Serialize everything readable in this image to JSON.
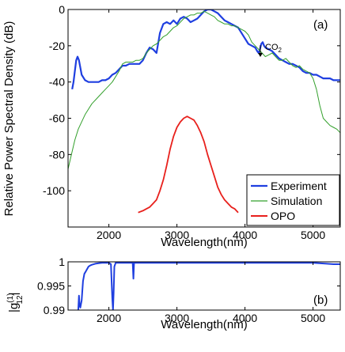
{
  "chart_data": [
    {
      "panel": "(a)",
      "type": "line",
      "xlabel": "Wavelength(nm)",
      "ylabel": "Relative Power Spectral Density (dB)",
      "xlim": [
        1400,
        5400
      ],
      "ylim": [
        -120,
        0
      ],
      "xticks": [
        2000,
        3000,
        4000,
        5000
      ],
      "yticks": [
        0,
        -20,
        -40,
        -60,
        -80,
        -100
      ],
      "legend_position": "bottom-right",
      "annotation": {
        "text": "CO",
        "subscript": "2",
        "x": 4230,
        "y": -18
      },
      "series": [
        {
          "name": "Experiment",
          "color": "#1f3fe0",
          "width": 2.2,
          "x": [
            1460,
            1480,
            1500,
            1520,
            1540,
            1560,
            1580,
            1600,
            1650,
            1700,
            1750,
            1800,
            1850,
            1900,
            1950,
            2000,
            2050,
            2100,
            2150,
            2200,
            2250,
            2300,
            2350,
            2400,
            2450,
            2500,
            2550,
            2600,
            2650,
            2700,
            2750,
            2800,
            2850,
            2900,
            2950,
            3000,
            3050,
            3100,
            3150,
            3200,
            3250,
            3300,
            3350,
            3400,
            3450,
            3500,
            3550,
            3600,
            3650,
            3700,
            3750,
            3800,
            3850,
            3900,
            3950,
            4000,
            4050,
            4100,
            4150,
            4180,
            4200,
            4220,
            4240,
            4260,
            4280,
            4300,
            4350,
            4400,
            4450,
            4500,
            4550,
            4600,
            4650,
            4700,
            4750,
            4800,
            4850,
            4900,
            4950,
            5000,
            5050,
            5100,
            5150,
            5200,
            5250,
            5300,
            5350,
            5400
          ],
          "y": [
            -44,
            -40,
            -34,
            -28,
            -26,
            -28,
            -32,
            -36,
            -39,
            -40,
            -40,
            -40,
            -40,
            -39,
            -39,
            -38,
            -36,
            -35,
            -33,
            -31,
            -31,
            -30,
            -30,
            -30,
            -30,
            -28,
            -24,
            -21,
            -22,
            -24,
            -13,
            -8,
            -7,
            -8,
            -6,
            -8,
            -5,
            -4,
            -5,
            -7,
            -6,
            -5,
            -3,
            -1,
            0,
            0,
            -1,
            -2,
            -4,
            -6,
            -7,
            -8,
            -9,
            -10,
            -13,
            -16,
            -19,
            -20,
            -21,
            -23,
            -24,
            -22,
            -19,
            -18,
            -20,
            -21,
            -22,
            -23,
            -25,
            -27,
            -28,
            -29,
            -30,
            -30,
            -31,
            -32,
            -34,
            -35,
            -35,
            -36,
            -36,
            -37,
            -38,
            -38,
            -38,
            -39,
            -39,
            -39
          ]
        },
        {
          "name": "Simulation",
          "color": "#33a02c",
          "width": 1,
          "x": [
            1400,
            1450,
            1500,
            1550,
            1600,
            1650,
            1700,
            1750,
            1800,
            1850,
            1900,
            1950,
            2000,
            2050,
            2100,
            2150,
            2200,
            2250,
            2300,
            2350,
            2400,
            2450,
            2500,
            2550,
            2600,
            2650,
            2700,
            2750,
            2800,
            2850,
            2900,
            2950,
            3000,
            3050,
            3100,
            3150,
            3200,
            3250,
            3300,
            3350,
            3400,
            3450,
            3500,
            3550,
            3600,
            3650,
            3700,
            3750,
            3800,
            3850,
            3900,
            3950,
            4000,
            4050,
            4100,
            4150,
            4200,
            4250,
            4300,
            4350,
            4400,
            4450,
            4500,
            4550,
            4600,
            4650,
            4700,
            4750,
            4800,
            4850,
            4900,
            4950,
            5000,
            5050,
            5100,
            5150,
            5200,
            5250,
            5300,
            5350,
            5400
          ],
          "y": [
            -88,
            -80,
            -72,
            -66,
            -62,
            -58,
            -55,
            -52,
            -50,
            -48,
            -46,
            -44,
            -42,
            -40,
            -37,
            -34,
            -30,
            -29,
            -29,
            -29,
            -28,
            -28,
            -27,
            -24,
            -22,
            -20,
            -19,
            -17,
            -15,
            -14,
            -12,
            -10,
            -9,
            -7,
            -5,
            -4,
            -3,
            -3,
            -2,
            -2,
            -1,
            -2,
            -3,
            -4,
            -6,
            -7,
            -8,
            -8,
            -9,
            -9,
            -10,
            -11,
            -12,
            -14,
            -18,
            -20,
            -22,
            -24,
            -26,
            -25,
            -24,
            -26,
            -28,
            -28,
            -27,
            -29,
            -31,
            -32,
            -31,
            -33,
            -34,
            -35,
            -38,
            -44,
            -53,
            -60,
            -62,
            -64,
            -65,
            -66,
            -68
          ]
        },
        {
          "name": "OPO",
          "color": "#e8201c",
          "width": 1.8,
          "x": [
            2430,
            2500,
            2550,
            2600,
            2650,
            2700,
            2750,
            2800,
            2850,
            2900,
            2950,
            3000,
            3050,
            3100,
            3150,
            3200,
            3250,
            3300,
            3350,
            3400,
            3450,
            3500,
            3550,
            3600,
            3650,
            3700,
            3750,
            3800,
            3850,
            3900
          ],
          "y": [
            -112,
            -111,
            -110,
            -109,
            -107,
            -105,
            -100,
            -94,
            -86,
            -77,
            -70,
            -65,
            -62,
            -60,
            -59,
            -60,
            -61,
            -64,
            -68,
            -73,
            -80,
            -86,
            -92,
            -98,
            -102,
            -105,
            -107,
            -109,
            -110,
            -112
          ]
        }
      ]
    },
    {
      "panel": "(b)",
      "type": "line",
      "xlabel": "Wavelength(nm)",
      "ylabel": "|g",
      "ylabel_sup": "(1)",
      "ylabel_sub": "12",
      "xlim": [
        1400,
        5400
      ],
      "ylim": [
        0.99,
        1
      ],
      "xticks": [
        2000,
        3000,
        4000,
        5000
      ],
      "ytick_labels": [
        "1",
        "0.995",
        "0.99"
      ],
      "yticks": [
        1,
        0.995,
        0.99
      ],
      "series": [
        {
          "name": "",
          "color": "#1f3fe0",
          "width": 2,
          "x": [
            1550,
            1560,
            1570,
            1580,
            1600,
            1620,
            1640,
            1660,
            1680,
            1700,
            1720,
            1750,
            1800,
            1850,
            1900,
            1950,
            2000,
            2030,
            2050,
            2060,
            2070,
            2080,
            2100,
            2200,
            2300,
            2350,
            2360,
            2370,
            2380,
            2400,
            2600,
            2800,
            3000,
            3500,
            4000,
            4500,
            5000,
            5200,
            5300,
            5400
          ],
          "y": [
            0.99,
            0.993,
            0.991,
            0.9905,
            0.992,
            0.996,
            0.9975,
            0.998,
            0.9985,
            0.999,
            0.9992,
            0.9994,
            0.9996,
            0.9997,
            0.9998,
            0.9998,
            0.9998,
            0.9995,
            0.9925,
            0.99,
            0.9935,
            0.999,
            0.9998,
            0.9998,
            0.9998,
            0.9998,
            0.9965,
            0.9998,
            0.9998,
            0.9998,
            0.9998,
            0.9998,
            0.9998,
            0.9998,
            0.9998,
            0.9998,
            0.9998,
            0.9996,
            0.9995,
            0.9995
          ]
        }
      ]
    }
  ]
}
